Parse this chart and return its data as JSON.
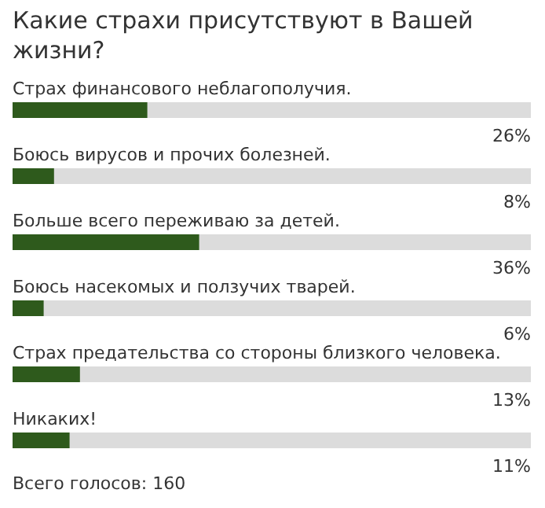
{
  "chart_data": {
    "type": "bar",
    "orientation": "horizontal",
    "title": "Какие страхи присутствуют в Вашей жизни?",
    "categories": [
      "Страх финансового неблагополучия.",
      "Боюсь вирусов и прочих болезней.",
      "Больше всего переживаю за детей.",
      "Боюсь насекомых и ползучих тварей.",
      "Страх предательства со стороны близкого человека.",
      "Никаких!"
    ],
    "values": [
      26,
      8,
      36,
      6,
      13,
      11
    ],
    "value_labels": [
      "26%",
      "8%",
      "36%",
      "6%",
      "13%",
      "11%"
    ],
    "color": "#2e5a1c",
    "xlim": [
      0,
      100
    ],
    "annotations": [
      "Всего голосов: 160"
    ]
  }
}
